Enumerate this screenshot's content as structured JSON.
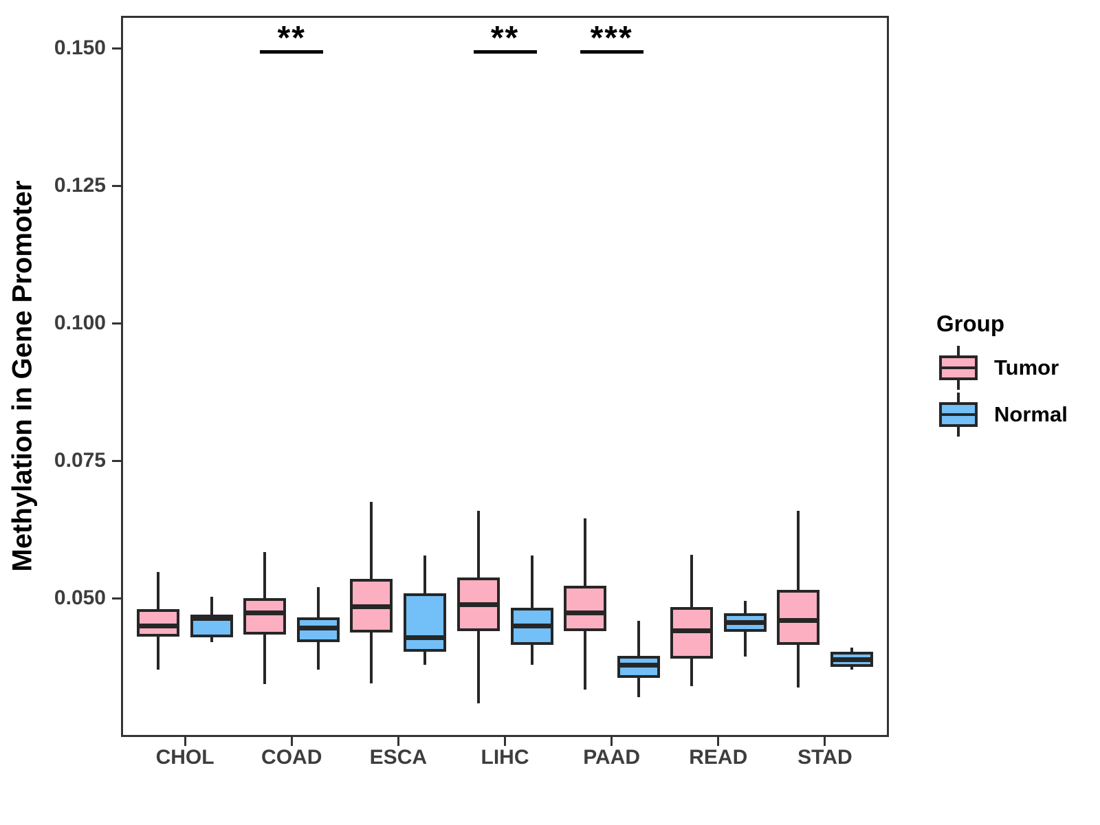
{
  "y_axis": {
    "title": "Methylation in Gene Promoter",
    "tick_labels": [
      "0.150",
      "0.125",
      "0.100",
      "0.075",
      "0.050"
    ],
    "tick_values": [
      0.15,
      0.125,
      0.1,
      0.075,
      0.05
    ]
  },
  "x_axis": {
    "categories": [
      "CHOL",
      "COAD",
      "ESCA",
      "LIHC",
      "PAAD",
      "READ",
      "STAD"
    ]
  },
  "legend": {
    "title": "Group",
    "items": [
      {
        "label": "Tumor",
        "color": "#FBAFC0"
      },
      {
        "label": "Normal",
        "color": "#73BFF7"
      }
    ]
  },
  "style": {
    "box_border": "#262626",
    "panel_border": "#333333",
    "tick_text": "#3D3D3D",
    "annotation": "#000000"
  },
  "chart_data": {
    "type": "boxplot",
    "title": "",
    "xlabel": "",
    "ylabel": "Methylation in Gene Promoter",
    "categories": [
      "CHOL",
      "COAD",
      "ESCA",
      "LIHC",
      "PAAD",
      "READ",
      "STAD"
    ],
    "y_domain": [
      0.0248,
      0.1559
    ],
    "y_ticks": [
      0.05,
      0.075,
      0.1,
      0.125,
      0.15
    ],
    "grid": false,
    "legend_position": "right",
    "series": [
      {
        "name": "Tumor",
        "fill": "#FBAFC0",
        "boxes": [
          {
            "category": "CHOL",
            "min": 0.0371,
            "q1": 0.043,
            "median": 0.045,
            "q3": 0.0481,
            "max": 0.0548
          },
          {
            "category": "COAD",
            "min": 0.0344,
            "q1": 0.0434,
            "median": 0.0473,
            "q3": 0.05,
            "max": 0.0584
          },
          {
            "category": "ESCA",
            "min": 0.0346,
            "q1": 0.0438,
            "median": 0.0485,
            "q3": 0.0535,
            "max": 0.0676
          },
          {
            "category": "LIHC",
            "min": 0.0309,
            "q1": 0.044,
            "median": 0.0488,
            "q3": 0.0538,
            "max": 0.0659
          },
          {
            "category": "PAAD",
            "min": 0.0334,
            "q1": 0.044,
            "median": 0.0473,
            "q3": 0.0523,
            "max": 0.0646
          },
          {
            "category": "READ",
            "min": 0.0341,
            "q1": 0.0391,
            "median": 0.0441,
            "q3": 0.0484,
            "max": 0.0579
          },
          {
            "category": "STAD",
            "min": 0.0338,
            "q1": 0.0415,
            "median": 0.046,
            "q3": 0.0515,
            "max": 0.0659
          }
        ]
      },
      {
        "name": "Normal",
        "fill": "#73BFF7",
        "boxes": [
          {
            "category": "CHOL",
            "min": 0.0421,
            "q1": 0.0429,
            "median": 0.0463,
            "q3": 0.0471,
            "max": 0.0503
          },
          {
            "category": "COAD",
            "min": 0.0371,
            "q1": 0.0421,
            "median": 0.0446,
            "q3": 0.0465,
            "max": 0.0521
          },
          {
            "category": "ESCA",
            "min": 0.0379,
            "q1": 0.0403,
            "median": 0.0428,
            "q3": 0.0509,
            "max": 0.0578
          },
          {
            "category": "LIHC",
            "min": 0.0379,
            "q1": 0.0416,
            "median": 0.045,
            "q3": 0.0483,
            "max": 0.0578
          },
          {
            "category": "PAAD",
            "min": 0.0321,
            "q1": 0.0356,
            "median": 0.0378,
            "q3": 0.0396,
            "max": 0.0459
          },
          {
            "category": "READ",
            "min": 0.0394,
            "q1": 0.0439,
            "median": 0.0456,
            "q3": 0.0473,
            "max": 0.0496
          },
          {
            "category": "STAD",
            "min": 0.037,
            "q1": 0.0376,
            "median": 0.0388,
            "q3": 0.0403,
            "max": 0.041
          }
        ]
      }
    ],
    "annotations": [
      {
        "category": "COAD",
        "label": "**",
        "y": 0.1496
      },
      {
        "category": "LIHC",
        "label": "**",
        "y": 0.1496
      },
      {
        "category": "PAAD",
        "label": "***",
        "y": 0.1496
      }
    ]
  }
}
